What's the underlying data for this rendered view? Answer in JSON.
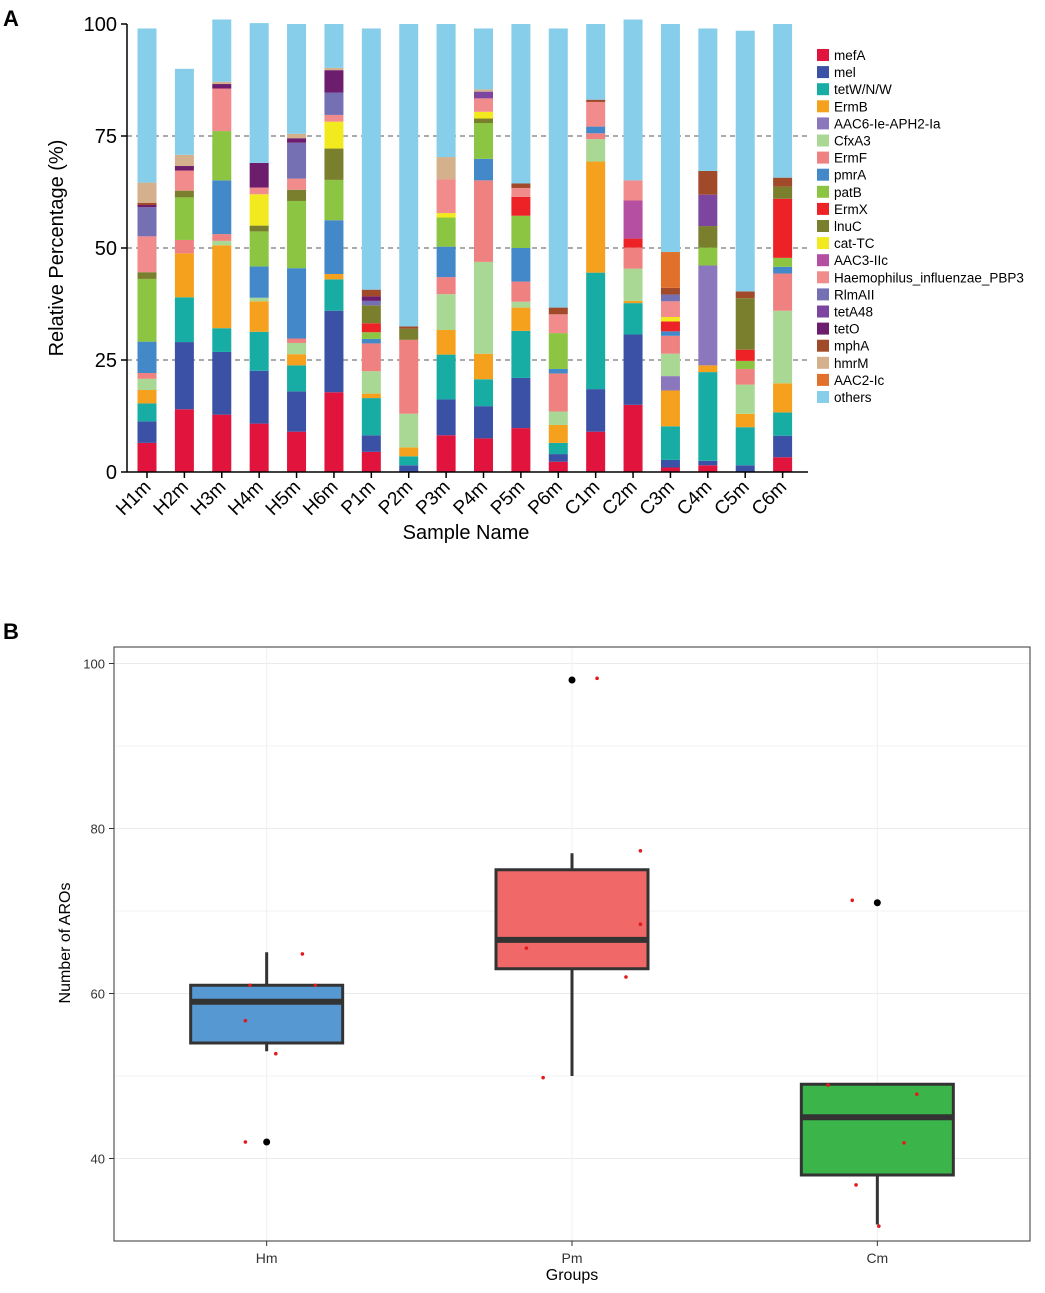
{
  "chart_data": [
    {
      "type": "stacked_bar",
      "panel_label": "A",
      "title": "",
      "xlabel": "Sample Name",
      "ylabel": "Relative Percentage (%)",
      "ylim": [
        0,
        100
      ],
      "yticks": [
        0,
        25,
        50,
        75,
        100
      ],
      "grid": "dashed at 25, 50, 75",
      "legend_position": "right",
      "categories": [
        "H1m",
        "H2m",
        "H3m",
        "H4m",
        "H5m",
        "H6m",
        "P1m",
        "P2m",
        "P3m",
        "P4m",
        "P5m",
        "P6m",
        "C1m",
        "C2m",
        "C3m",
        "C4m",
        "C5m",
        "C6m"
      ],
      "series": [
        {
          "name": "mefA",
          "color": "#e0143c",
          "values": [
            6.5,
            14,
            12.8,
            10.8,
            9,
            17.8,
            4.5,
            0,
            8.2,
            7.5,
            9.8,
            2.3,
            9,
            15,
            1,
            1.5,
            0,
            3.3
          ]
        },
        {
          "name": "mel",
          "color": "#3a51a6",
          "values": [
            4.8,
            15,
            14,
            11.8,
            9,
            18.2,
            3.7,
            1.5,
            8,
            7.2,
            11.2,
            1.7,
            9.5,
            15.7,
            1.7,
            1,
            1.5,
            4.8
          ]
        },
        {
          "name": "tetW/N/W",
          "color": "#17ada5",
          "values": [
            4,
            10,
            5.3,
            8.7,
            5.8,
            7,
            8.3,
            2,
            10,
            6,
            10.5,
            2.5,
            26,
            7,
            7.5,
            19.8,
            8.5,
            5.2
          ]
        },
        {
          "name": "ErmB",
          "color": "#f6a11d",
          "values": [
            3,
            9.8,
            18.5,
            6.8,
            2.5,
            1.2,
            1,
            2,
            5.5,
            5.7,
            5.2,
            4,
            24.8,
            0.5,
            8,
            1.5,
            3,
            6.5
          ]
        },
        {
          "name": "AAC6-Ie-APH2-Ia",
          "color": "#8b77bd",
          "values": [
            0,
            0,
            0,
            0,
            0,
            0,
            0,
            0,
            0,
            0,
            0,
            0,
            0,
            0,
            3.2,
            22.3,
            0,
            0
          ]
        },
        {
          "name": "CfxA3",
          "color": "#a9d894",
          "values": [
            2.5,
            0,
            1,
            0.8,
            2.5,
            0,
            5,
            7.5,
            8,
            20.5,
            1.3,
            3,
            5,
            7.2,
            5,
            0,
            6.5,
            16.2
          ]
        },
        {
          "name": "ErmF",
          "color": "#f08181",
          "values": [
            1.3,
            3,
            1.5,
            0,
            1,
            0,
            6.2,
            16.5,
            3.8,
            18.2,
            4.5,
            8.5,
            1.3,
            4.7,
            4,
            0,
            3.5,
            8.3
          ]
        },
        {
          "name": "pmrA",
          "color": "#4388c8",
          "values": [
            7,
            0,
            12,
            7,
            15.7,
            12,
            1,
            0,
            6.8,
            4.8,
            7.5,
            1,
            1.5,
            0,
            1,
            0,
            0,
            1.5
          ]
        },
        {
          "name": "patB",
          "color": "#8bc541",
          "values": [
            14,
            9.5,
            11,
            7.8,
            15,
            9,
            1.5,
            0,
            6.5,
            8,
            7.2,
            8,
            0,
            0,
            0,
            4,
            1.8,
            2
          ]
        },
        {
          "name": "ErmX",
          "color": "#ec2227",
          "values": [
            0,
            0,
            0,
            0,
            0,
            0,
            2,
            0,
            0,
            0,
            4.2,
            0,
            0,
            2,
            2.2,
            0,
            2.5,
            13.2
          ]
        },
        {
          "name": "lnuC",
          "color": "#7a7f2e",
          "values": [
            1.5,
            1.5,
            0,
            1.3,
            2.5,
            7,
            4,
            2.5,
            0,
            1,
            0,
            0,
            0,
            0,
            0,
            4.8,
            11.5,
            2.7
          ]
        },
        {
          "name": "cat-TC",
          "color": "#f2ea1e",
          "values": [
            0,
            0,
            0,
            7,
            0,
            6,
            0,
            0,
            1,
            1.5,
            0,
            0,
            0,
            0,
            1,
            0,
            0,
            0
          ]
        },
        {
          "name": "AAC3-IIc",
          "color": "#b44fa2",
          "values": [
            0,
            0,
            0,
            0,
            0,
            0,
            0,
            0,
            0,
            0,
            0,
            0,
            0,
            8.5,
            0,
            0,
            0,
            0
          ]
        },
        {
          "name": "Haemophilus_influenzae_PBP3",
          "color": "#f28b8b",
          "values": [
            8,
            4.5,
            9.5,
            1.5,
            2.5,
            1.5,
            0,
            0,
            7.5,
            3,
            2,
            4.2,
            5.5,
            4.5,
            3.5,
            0,
            0,
            0
          ]
        },
        {
          "name": "RlmAII",
          "color": "#7470b3",
          "values": [
            6.5,
            0,
            0,
            0,
            8,
            5,
            1,
            0,
            0,
            0,
            0,
            0,
            0,
            0,
            1.5,
            0,
            0,
            0
          ]
        },
        {
          "name": "tetA48",
          "color": "#7c46a0",
          "values": [
            0,
            0,
            0,
            0,
            0,
            0,
            0,
            0,
            0,
            1.5,
            0,
            0,
            0,
            0,
            0,
            7,
            0,
            0
          ]
        },
        {
          "name": "tetO",
          "color": "#6c1d6e",
          "values": [
            0.5,
            1,
            1,
            5.5,
            1,
            5,
            1,
            0,
            0,
            0,
            0,
            0,
            0,
            0,
            0,
            0,
            0,
            0
          ]
        },
        {
          "name": "mphA",
          "color": "#a14a2a",
          "values": [
            0.5,
            0,
            0,
            0,
            0,
            0,
            1.5,
            0.5,
            0,
            0,
            1,
            1.5,
            0.5,
            0,
            1.5,
            5.3,
            1.5,
            2
          ]
        },
        {
          "name": "hmrM",
          "color": "#d4b08c",
          "values": [
            4.5,
            2.5,
            0.5,
            0,
            1,
            0.5,
            0,
            0,
            5,
            0.5,
            0,
            0,
            0,
            0,
            0,
            0,
            0,
            0
          ]
        },
        {
          "name": "AAC2-Ic",
          "color": "#e0702a",
          "values": [
            0,
            0,
            0,
            0,
            0,
            0,
            0,
            0,
            0,
            0,
            0,
            0,
            0,
            0,
            8,
            0,
            0,
            0
          ]
        },
        {
          "name": "others",
          "color": "#87ceeb",
          "values": [
            34.4,
            19.2,
            13.9,
            31.2,
            24.5,
            9.8,
            58.3,
            67.5,
            29.7,
            13.6,
            35.6,
            62.3,
            16.9,
            35.9,
            50.9,
            31.8,
            58.2,
            34.3
          ]
        }
      ]
    },
    {
      "type": "boxplot",
      "panel_label": "B",
      "title": "",
      "xlabel": "Groups",
      "ylabel": "Number of AROs",
      "ylim": [
        30,
        102
      ],
      "yticks": [
        40,
        60,
        80,
        100
      ],
      "grid": true,
      "categories": [
        "Hm",
        "Pm",
        "Cm"
      ],
      "boxes": [
        {
          "group": "Hm",
          "color": "#5598d2",
          "whisker_low": 53,
          "q1": 54,
          "median": 59,
          "q3": 61,
          "whisker_high": 65,
          "outliers": [
            42
          ]
        },
        {
          "group": "Pm",
          "color": "#f06868",
          "whisker_low": 50,
          "q1": 63,
          "median": 66.5,
          "q3": 75,
          "whisker_high": 77,
          "outliers": [
            98
          ]
        },
        {
          "group": "Cm",
          "color": "#3bb54a",
          "whisker_low": 32,
          "q1": 38,
          "median": 45,
          "q3": 49,
          "whisker_high": 49,
          "outliers": [
            71
          ]
        }
      ],
      "points": [
        {
          "group": "Hm",
          "jitter": -0.28,
          "value": 42
        },
        {
          "group": "Hm",
          "jitter": -0.28,
          "value": 56.7
        },
        {
          "group": "Hm",
          "jitter": -0.22,
          "value": 61
        },
        {
          "group": "Hm",
          "jitter": 0.12,
          "value": 52.7
        },
        {
          "group": "Hm",
          "jitter": 0.47,
          "value": 64.8
        },
        {
          "group": "Hm",
          "jitter": 0.64,
          "value": 61
        },
        {
          "group": "Pm",
          "jitter": -0.6,
          "value": 65.5
        },
        {
          "group": "Pm",
          "jitter": -0.38,
          "value": 49.8
        },
        {
          "group": "Pm",
          "jitter": 0.33,
          "value": 98.2
        },
        {
          "group": "Pm",
          "jitter": 0.71,
          "value": 62
        },
        {
          "group": "Pm",
          "jitter": 0.9,
          "value": 77.3
        },
        {
          "group": "Pm",
          "jitter": 0.9,
          "value": 68.4
        },
        {
          "group": "Cm",
          "jitter": -0.65,
          "value": 48.9
        },
        {
          "group": "Cm",
          "jitter": -0.33,
          "value": 71.3
        },
        {
          "group": "Cm",
          "jitter": -0.28,
          "value": 36.8
        },
        {
          "group": "Cm",
          "jitter": 0.02,
          "value": 31.8
        },
        {
          "group": "Cm",
          "jitter": 0.35,
          "value": 41.9
        },
        {
          "group": "Cm",
          "jitter": 0.52,
          "value": 47.8
        }
      ]
    }
  ]
}
